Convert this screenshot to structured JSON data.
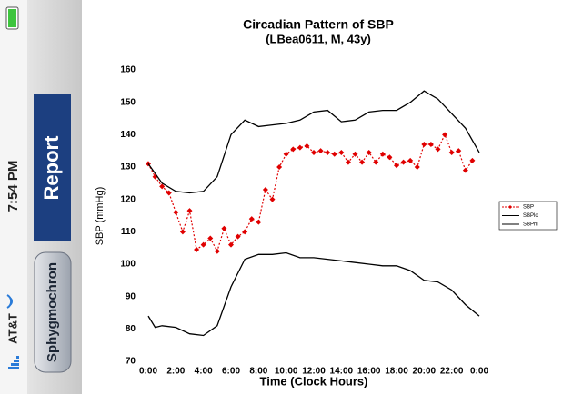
{
  "status_bar": {
    "time": "7:54 PM",
    "carrier": "AT&T"
  },
  "sidebar": {
    "banner": "Report",
    "button": "Sphygmochron"
  },
  "chart_data": {
    "type": "line",
    "title": "Circadian Pattern of SBP",
    "subtitle": "(LBea0611, M, 43y)",
    "x_label": "Time (Clock Hours)",
    "y_label": "SBP (mmHg)",
    "xlim": [
      0,
      24
    ],
    "xticks": [
      {
        "value": 0,
        "label": "0:00"
      },
      {
        "value": 2,
        "label": "2:00"
      },
      {
        "value": 4,
        "label": "4:00"
      },
      {
        "value": 6,
        "label": "6:00"
      },
      {
        "value": 8,
        "label": "8:00"
      },
      {
        "value": 10,
        "label": "10:00"
      },
      {
        "value": 12,
        "label": "12:00"
      },
      {
        "value": 14,
        "label": "14:00"
      },
      {
        "value": 16,
        "label": "16:00"
      },
      {
        "value": 18,
        "label": "18:00"
      },
      {
        "value": 20,
        "label": "20:00"
      },
      {
        "value": 22,
        "label": "22:00"
      },
      {
        "value": 24,
        "label": "0:00"
      }
    ],
    "ylim": [
      70,
      160
    ],
    "yticks": [
      70,
      80,
      90,
      100,
      110,
      120,
      130,
      140,
      150,
      160
    ],
    "legend": "right",
    "series": [
      {
        "name": "SBP",
        "color": "#e00000",
        "dotted": true,
        "markers": true,
        "x": [
          0,
          0.5,
          1,
          1.5,
          2,
          2.5,
          3,
          3.5,
          4,
          4.5,
          5,
          5.5,
          6,
          6.5,
          7,
          7.5,
          8,
          8.5,
          9,
          9.5,
          10,
          10.5,
          11,
          11.5,
          12,
          12.5,
          13,
          13.5,
          14,
          14.5,
          15,
          15.5,
          16,
          16.5,
          17,
          17.5,
          18,
          18.5,
          19,
          19.5,
          20,
          20.5,
          21,
          21.5,
          22,
          22.5,
          23,
          23.5
        ],
        "values": [
          131,
          127,
          124,
          122,
          116,
          110,
          116.5,
          104.5,
          106,
          108,
          104,
          111,
          106,
          108.5,
          110,
          114,
          113,
          123,
          120,
          130,
          134,
          135.5,
          136,
          136.5,
          134.5,
          135,
          134.5,
          134,
          134.5,
          131.5,
          134,
          131.5,
          134.5,
          131.5,
          134,
          133,
          130.5,
          131.5,
          132,
          130,
          137,
          137,
          135.5,
          140,
          134.5,
          135,
          129,
          132
        ]
      },
      {
        "name": "SBPlo",
        "color": "#000000",
        "dotted": false,
        "markers": false,
        "x": [
          0,
          0.5,
          1,
          2,
          3,
          4,
          5,
          6,
          7,
          8,
          9,
          10,
          11,
          12,
          13,
          14,
          15,
          16,
          17,
          18,
          19,
          20,
          21,
          22,
          23,
          24
        ],
        "values": [
          84,
          80.5,
          81,
          80.5,
          78.5,
          78,
          81,
          93,
          101.5,
          103,
          103,
          103.5,
          102,
          102,
          101.5,
          101,
          100.5,
          100,
          99.5,
          99.5,
          98,
          95,
          94.5,
          92,
          87.5,
          84
        ]
      },
      {
        "name": "SBPhi",
        "color": "#000000",
        "dotted": false,
        "markers": false,
        "x": [
          0,
          1,
          2,
          3,
          4,
          5,
          6,
          7,
          8,
          9,
          10,
          11,
          12,
          13,
          14,
          15,
          16,
          17,
          18,
          19,
          20,
          21,
          22,
          23,
          24
        ],
        "values": [
          131,
          125,
          122.5,
          122,
          122.5,
          127,
          140,
          144.5,
          142.5,
          143,
          143.5,
          144.5,
          147,
          147.5,
          144,
          144.5,
          147,
          147.5,
          147.5,
          150,
          153.5,
          151,
          146.5,
          142,
          134.5
        ]
      }
    ]
  }
}
